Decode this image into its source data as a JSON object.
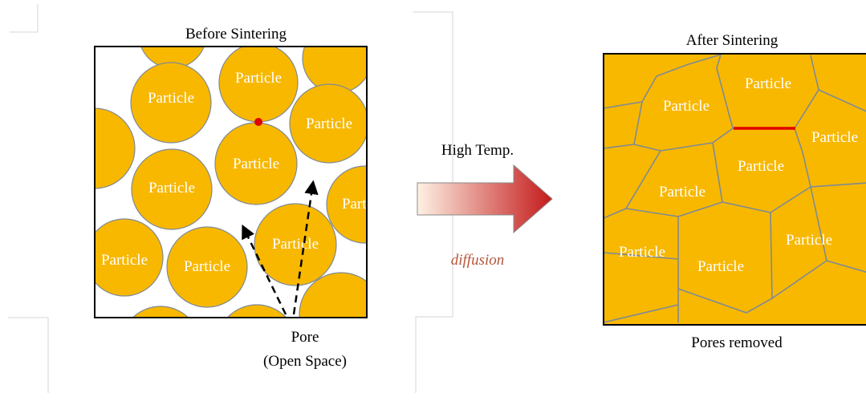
{
  "before": {
    "title": "Before Sintering",
    "particle_label": "Particle",
    "pore_label_line1": "Pore",
    "pore_label_line2": "(Open Space)"
  },
  "middle": {
    "process_label": "High Temp.",
    "mechanism_label": "diffusion"
  },
  "after": {
    "title": "After Sintering",
    "particle_label": "Particle",
    "caption": "Pores removed"
  },
  "colors": {
    "particle_fill": "#F8B800",
    "particle_stroke": "#7F8A94",
    "label_text": "#FFFFFF",
    "contact_point": "#E00000",
    "grain_boundary_highlight": "#E00000",
    "arrow_start": "#FDF1E4",
    "arrow_end": "#C41A1A",
    "mechanism_text": "#B5563A"
  }
}
